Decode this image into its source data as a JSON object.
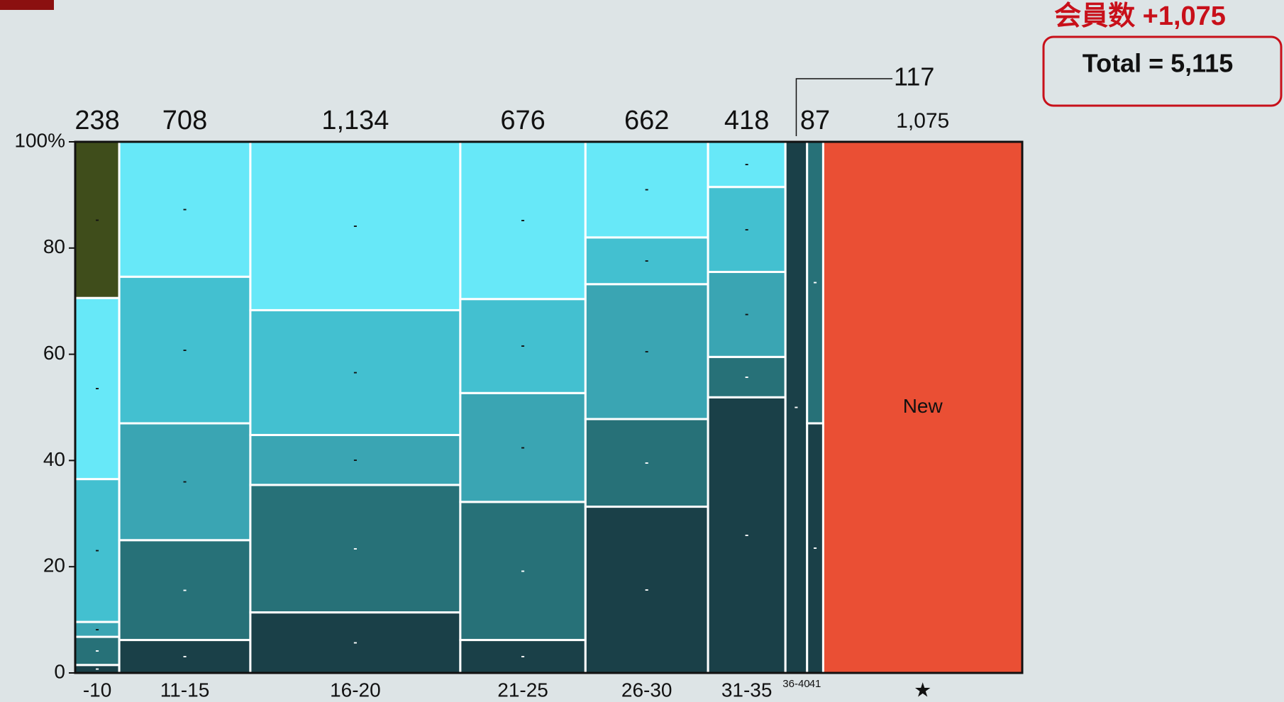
{
  "header": {
    "title": "会員数 +1,075",
    "total": "Total = 5,115"
  },
  "chart_data": {
    "type": "mekko",
    "categories": [
      "-10",
      "11-15",
      "16-20",
      "21-25",
      "26-30",
      "31-35",
      "36-40",
      "41",
      "★"
    ],
    "widths": [
      238,
      708,
      1134,
      676,
      662,
      418,
      117,
      87,
      1075
    ],
    "width_labels": [
      "238",
      "708",
      "1,134",
      "676",
      "662",
      "418",
      "117",
      "87",
      "1,075"
    ],
    "series": [
      {
        "color": "#1a4048",
        "values": [
          1.5,
          6.2,
          11.4,
          6.2,
          31.3,
          51.9,
          100,
          47.0,
          0
        ],
        "value_labels": [
          "-",
          "-",
          "-",
          "-",
          "-",
          "-",
          "-",
          "-",
          null
        ]
      },
      {
        "color": "#277178",
        "values": [
          5.3,
          18.8,
          24.0,
          26.0,
          16.5,
          7.6,
          0,
          53.0,
          0
        ],
        "value_labels": [
          "-",
          "-",
          "-",
          "-",
          "-",
          "-",
          null,
          "-",
          null
        ]
      },
      {
        "color": "#3aa5b3",
        "values": [
          2.8,
          22.0,
          9.4,
          20.5,
          25.4,
          16.0,
          0,
          0,
          0
        ],
        "value_labels": [
          "-",
          "-",
          "-",
          "-",
          "-",
          "-",
          null,
          null,
          null
        ]
      },
      {
        "color": "#43c0d0",
        "values": [
          26.9,
          27.6,
          23.5,
          17.7,
          8.8,
          16.0,
          0,
          0,
          0
        ],
        "value_labels": [
          "-",
          "-",
          "-",
          "-",
          "-",
          "-",
          null,
          null,
          null
        ]
      },
      {
        "color": "#67e8f8",
        "values": [
          34.1,
          25.4,
          31.7,
          29.6,
          18.0,
          8.5,
          0,
          0,
          0
        ],
        "value_labels": [
          "-",
          "-",
          "-",
          "-",
          "-",
          "-",
          null,
          null,
          null
        ]
      },
      {
        "color": "#3f4d1b",
        "values": [
          29.4,
          0,
          0,
          0,
          0,
          0,
          0,
          0,
          0
        ],
        "value_labels": [
          "-",
          null,
          null,
          null,
          null,
          null,
          null,
          null,
          null
        ]
      },
      {
        "name": "New",
        "color": "#ea4f34",
        "values": [
          0,
          0,
          0,
          0,
          0,
          0,
          0,
          0,
          100
        ]
      }
    ],
    "ylim": [
      0,
      100
    ],
    "yticks": [
      0,
      20,
      40,
      60,
      80,
      {
        "value": 100,
        "label": "100%"
      }
    ]
  }
}
